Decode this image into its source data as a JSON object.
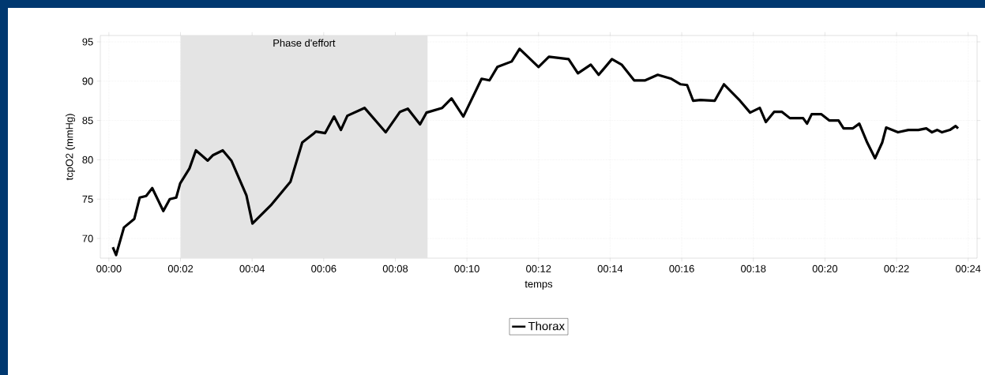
{
  "chart_data": {
    "type": "line",
    "xlabel": "temps",
    "ylabel": "tcpO2 (mmHg)",
    "x": [
      0.11,
      0.2,
      0.42,
      0.71,
      0.86,
      1.04,
      1.21,
      1.52,
      1.7,
      1.88,
      1.99,
      2.25,
      2.43,
      2.76,
      2.91,
      3.18,
      3.42,
      3.84,
      4.01,
      4.52,
      5.07,
      5.4,
      5.71,
      5.78,
      6.04,
      6.29,
      6.48,
      6.66,
      7.14,
      7.73,
      8.13,
      8.35,
      8.69,
      8.87,
      9.31,
      9.57,
      9.9,
      10.41,
      10.63,
      10.85,
      11.25,
      11.47,
      12.0,
      12.29,
      12.84,
      13.1,
      13.46,
      13.68,
      14.05,
      14.32,
      14.67,
      14.98,
      15.33,
      15.71,
      15.97,
      16.15,
      16.32,
      16.52,
      16.92,
      17.18,
      17.63,
      17.91,
      18.18,
      18.35,
      18.58,
      18.8,
      19.02,
      19.39,
      19.5,
      19.63,
      19.9,
      20.12,
      20.38,
      20.52,
      20.78,
      20.96,
      21.18,
      21.4,
      21.6,
      21.71,
      22.04,
      22.33,
      22.61,
      22.83,
      22.99,
      23.14,
      23.27,
      23.49,
      23.65,
      23.72
    ],
    "series": [
      {
        "name": "Thorax",
        "color": "#000000",
        "values": [
          68.9,
          67.9,
          71.4,
          72.5,
          75.2,
          75.4,
          76.4,
          73.5,
          75.0,
          75.2,
          77.0,
          78.9,
          81.2,
          79.9,
          80.6,
          81.2,
          79.9,
          75.5,
          71.9,
          74.2,
          77.2,
          82.2,
          83.3,
          83.6,
          83.4,
          85.5,
          83.8,
          85.6,
          86.6,
          83.5,
          86.1,
          86.5,
          84.5,
          86.0,
          86.6,
          87.8,
          85.5,
          90.3,
          90.1,
          91.8,
          92.5,
          94.1,
          91.8,
          93.1,
          92.8,
          91.0,
          92.1,
          90.8,
          92.8,
          92.1,
          90.1,
          90.1,
          90.8,
          90.3,
          89.6,
          89.5,
          87.5,
          87.6,
          87.5,
          89.6,
          87.5,
          86.0,
          86.6,
          84.8,
          86.1,
          86.1,
          85.3,
          85.3,
          84.6,
          85.8,
          85.8,
          85.0,
          85.0,
          84.0,
          84.0,
          84.6,
          82.2,
          80.2,
          82.2,
          84.1,
          83.5,
          83.8,
          83.8,
          84.0,
          83.5,
          83.8,
          83.5,
          83.8,
          84.3,
          84.0
        ]
      }
    ],
    "xlim": [
      -0.24,
      24.25
    ],
    "ylim": [
      67.5,
      95.8
    ],
    "xticks": [
      {
        "value": 0,
        "label": "00:00"
      },
      {
        "value": 2,
        "label": "00:02"
      },
      {
        "value": 4,
        "label": "00:04"
      },
      {
        "value": 6,
        "label": "00:06"
      },
      {
        "value": 8,
        "label": "00:08"
      },
      {
        "value": 10,
        "label": "00:10"
      },
      {
        "value": 12,
        "label": "00:12"
      },
      {
        "value": 14,
        "label": "00:14"
      },
      {
        "value": 16,
        "label": "00:16"
      },
      {
        "value": 18,
        "label": "00:18"
      },
      {
        "value": 20,
        "label": "00:20"
      },
      {
        "value": 22,
        "label": "00:22"
      },
      {
        "value": 24,
        "label": "00:24"
      }
    ],
    "yticks": [
      70,
      75,
      80,
      85,
      90,
      95
    ],
    "bands": [
      {
        "axis": "x",
        "from": 2,
        "to": 8.9,
        "label": "Phase d'effort",
        "color": "#e4e4e4"
      }
    ],
    "grid": true,
    "legend": "bottom",
    "marker": "none",
    "line_style": "solid"
  }
}
